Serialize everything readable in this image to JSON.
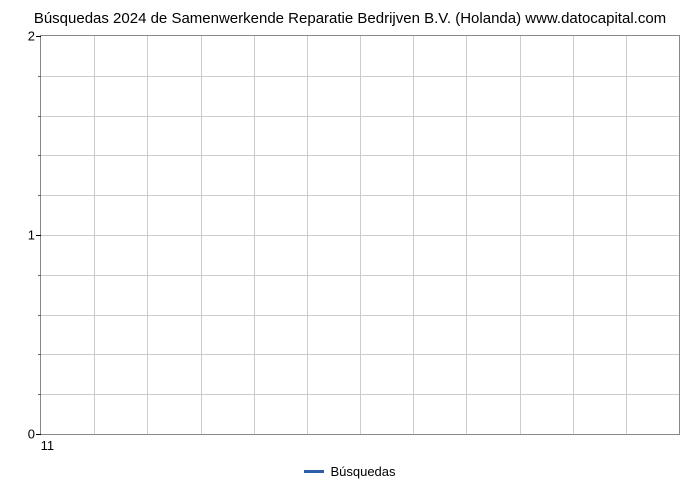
{
  "chart": {
    "type": "line",
    "title": "Búsquedas 2024 de Samenwerkende Reparatie Bedrijven B.V. (Holanda) www.datocapital.com",
    "title_fontsize": 15,
    "title_color": "#000000",
    "background_color": "#ffffff",
    "plot_border_color": "#888888",
    "grid_color": "#cccccc",
    "y_axis": {
      "min": 0,
      "max": 2,
      "major_ticks": [
        0,
        1,
        2
      ],
      "minor_tick_count_between": 4,
      "grid_lines": 10,
      "label_fontsize": 13
    },
    "x_axis": {
      "ticks": [
        "11"
      ],
      "grid_lines": 12,
      "label_fontsize": 13
    },
    "series": [
      {
        "name": "Búsquedas",
        "color": "#2b5faa",
        "line_width": 3,
        "data": []
      }
    ],
    "legend": {
      "position": "bottom",
      "items": [
        {
          "label": "Búsquedas",
          "color": "#2b5faa"
        }
      ],
      "fontsize": 13
    }
  }
}
